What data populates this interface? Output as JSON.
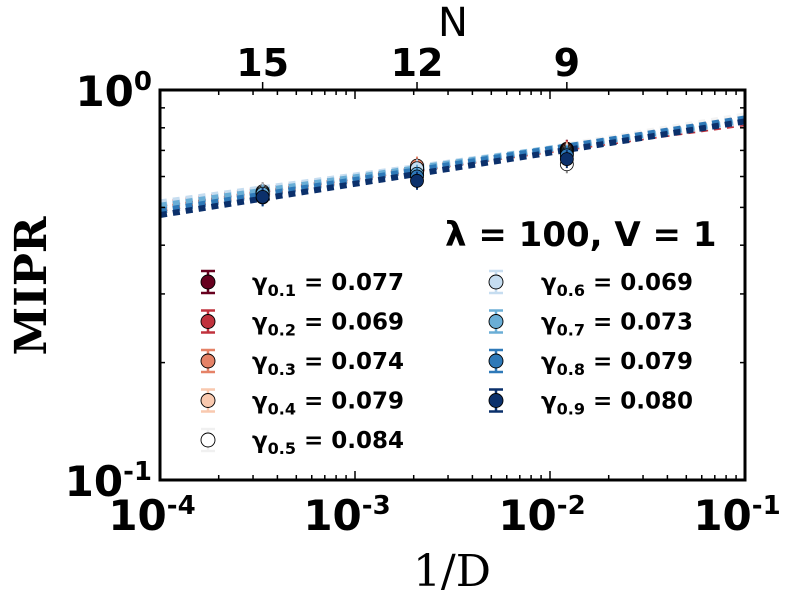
{
  "chart_data": {
    "type": "scatter",
    "xscale": "log",
    "yscale": "log",
    "xlim": [
      0.0001,
      0.1
    ],
    "ylim": [
      0.1,
      1.0
    ],
    "xlabel": "1/D",
    "ylabel": "MIPR",
    "x_ticks": [
      {
        "value": 0.0001,
        "base": "10",
        "exp": "-4"
      },
      {
        "value": 0.001,
        "base": "10",
        "exp": "-3"
      },
      {
        "value": 0.01,
        "base": "10",
        "exp": "-2"
      },
      {
        "value": 0.1,
        "base": "10",
        "exp": "-1"
      }
    ],
    "y_ticks": [
      {
        "value": 1.0,
        "base": "10",
        "exp": "0"
      },
      {
        "value": 0.1,
        "base": "10",
        "exp": "-1"
      }
    ],
    "top_axis": {
      "label": "N",
      "ticks": [
        {
          "x": 0.000336,
          "label": "15"
        },
        {
          "x": 0.00208,
          "label": "12"
        },
        {
          "x": 0.0122,
          "label": "9"
        }
      ]
    },
    "annotation": "λ = 100, V = 1",
    "grid": false,
    "legend_position": "lower-center",
    "x_points": [
      0.000336,
      0.00208,
      0.0122
    ],
    "series": [
      {
        "label": "γ",
        "sub": "0.1",
        "value": "= 0.077",
        "color": "#67001f",
        "y": [
          0.548,
          0.625,
          0.707
        ],
        "fit_at_1e4": 0.495,
        "slope": 0.077
      },
      {
        "label": "γ",
        "sub": "0.2",
        "value": "= 0.069",
        "color": "#c0323d",
        "y": [
          0.545,
          0.635,
          0.705
        ],
        "fit_at_1e4": 0.51,
        "slope": 0.069
      },
      {
        "label": "γ",
        "sub": "0.3",
        "value": "= 0.074",
        "color": "#e58267",
        "y": [
          0.547,
          0.64,
          0.7
        ],
        "fit_at_1e4": 0.5,
        "slope": 0.074
      },
      {
        "label": "γ",
        "sub": "0.4",
        "value": "= 0.079",
        "color": "#f9c9af",
        "y": [
          0.54,
          0.628,
          0.695
        ],
        "fit_at_1e4": 0.49,
        "slope": 0.079
      },
      {
        "label": "γ",
        "sub": "0.5",
        "value": "= 0.084",
        "color": "#ffffff",
        "y": [
          0.55,
          0.615,
          0.645
        ],
        "fit_at_1e4": 0.482,
        "slope": 0.084
      },
      {
        "label": "γ",
        "sub": "0.6",
        "value": "= 0.069",
        "color": "#c6ddf0",
        "y": [
          0.546,
          0.63,
          0.69
        ],
        "fit_at_1e4": 0.515,
        "slope": 0.069
      },
      {
        "label": "γ",
        "sub": "0.7",
        "value": "= 0.073",
        "color": "#6aaed6",
        "y": [
          0.542,
          0.61,
          0.685
        ],
        "fit_at_1e4": 0.505,
        "slope": 0.073
      },
      {
        "label": "γ",
        "sub": "0.8",
        "value": "= 0.079",
        "color": "#2e79b8",
        "y": [
          0.53,
          0.6,
          0.68
        ],
        "fit_at_1e4": 0.49,
        "slope": 0.079
      },
      {
        "label": "γ",
        "sub": "0.9",
        "value": "= 0.080",
        "color": "#0b306b",
        "y": [
          0.532,
          0.585,
          0.665
        ],
        "fit_at_1e4": 0.478,
        "slope": 0.08
      }
    ]
  }
}
